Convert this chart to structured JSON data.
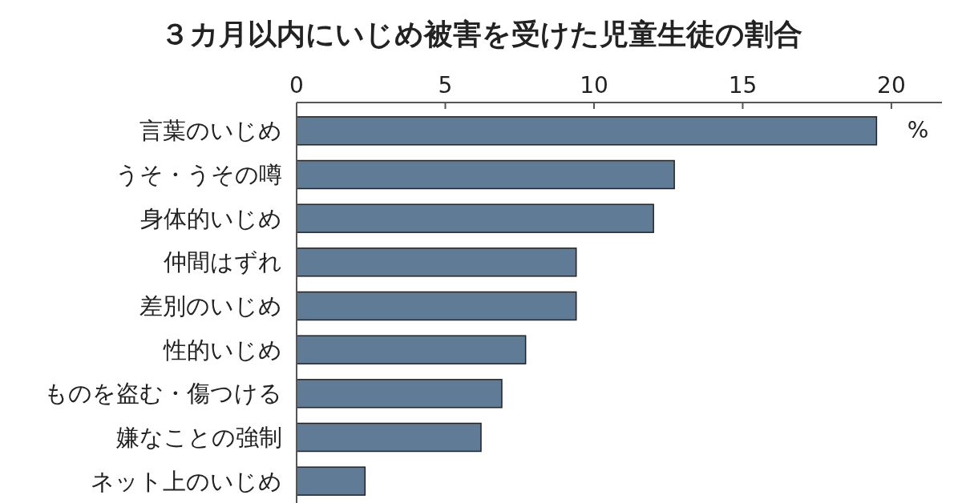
{
  "chart_data": {
    "type": "bar",
    "orientation": "horizontal",
    "title": "３カ月以内にいじめ被害を受けた児童生徒の割合",
    "xlabel": "%",
    "categories": [
      "言葉のいじめ",
      "うそ・うその噂",
      "身体的いじめ",
      "仲間はずれ",
      "差別のいじめ",
      "性的いじめ",
      "ものを盗む・傷つける",
      "嫌なことの強制",
      "ネット上のいじめ"
    ],
    "values": [
      19.5,
      12.7,
      12.0,
      9.4,
      9.4,
      7.7,
      6.9,
      6.2,
      2.3
    ],
    "color": "#5f7b95",
    "xlim": [
      0,
      21.7
    ],
    "xticks": [
      0,
      5,
      10,
      15,
      20
    ],
    "grid": false
  }
}
